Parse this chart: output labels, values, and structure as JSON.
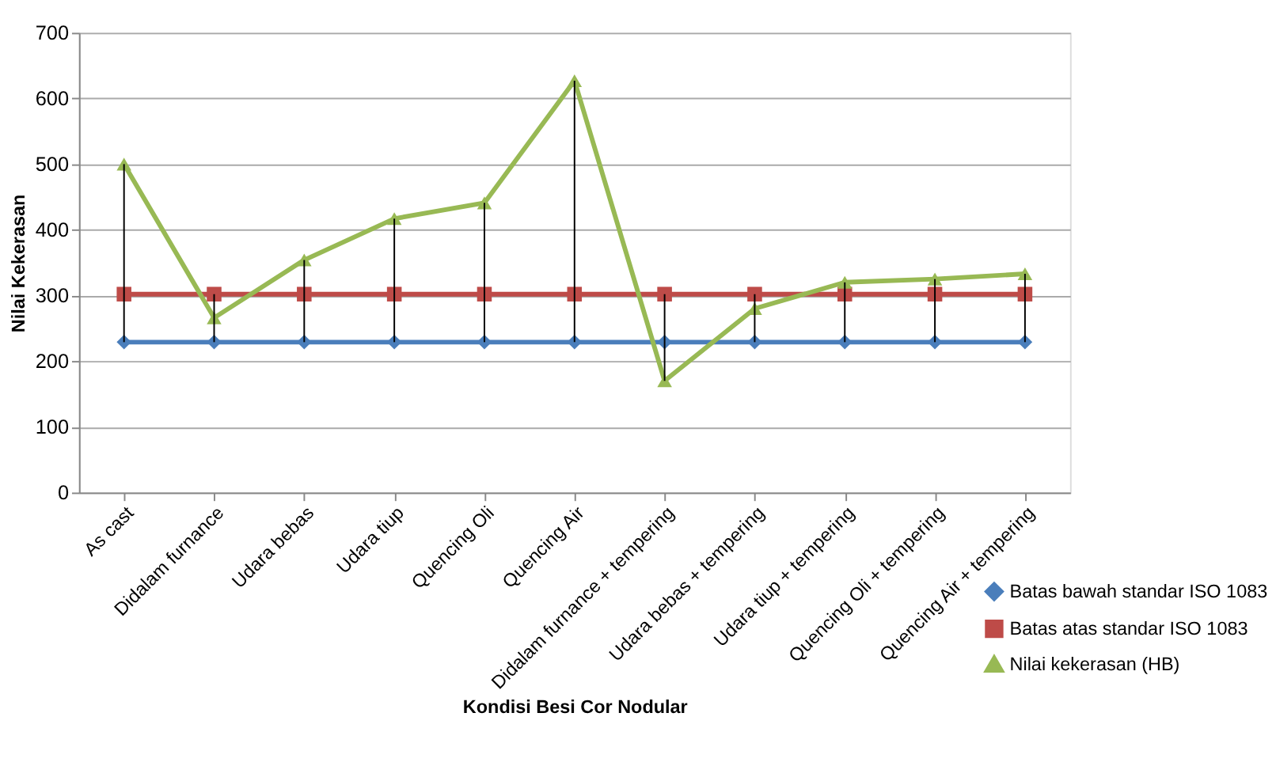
{
  "chart_data": {
    "type": "line",
    "xlabel": "Kondisi Besi Cor Nodular",
    "ylabel": "Nilai Kekerasan",
    "categories": [
      "As cast",
      "Didalam furnance",
      "Udara bebas",
      "Udara tiup",
      "Quencing Oli",
      "Quencing Air",
      "Didalam furnance + tempering",
      "Udara bebas + tempering",
      "Udara tiup + tempering",
      "Quencing Oli + tempering",
      "Quencing Air + tempering"
    ],
    "series": [
      {
        "name": "Batas bawah standar ISO 1083",
        "color": "#4a7ebb",
        "marker": "diamond",
        "values": [
          229,
          229,
          229,
          229,
          229,
          229,
          229,
          229,
          229,
          229,
          229
        ]
      },
      {
        "name": "Batas atas standar ISO 1083",
        "color": "#be4b48",
        "marker": "square",
        "values": [
          302,
          302,
          302,
          302,
          302,
          302,
          302,
          302,
          302,
          302,
          302
        ]
      },
      {
        "name": "Nilai kekerasan (HB)",
        "color": "#98b954",
        "marker": "triangle",
        "values": [
          500,
          266,
          354,
          417,
          441,
          627,
          170,
          280,
          320,
          325,
          333
        ],
        "errors": [
          [
            229,
            500
          ],
          [
            229,
            302
          ],
          [
            229,
            354
          ],
          [
            229,
            417
          ],
          [
            229,
            441
          ],
          [
            229,
            627
          ],
          [
            170,
            302
          ],
          [
            229,
            302
          ],
          [
            229,
            320
          ],
          [
            229,
            325
          ],
          [
            229,
            333
          ]
        ]
      }
    ],
    "ylim": [
      0,
      700
    ],
    "yticks": [
      0,
      100,
      200,
      300,
      400,
      500,
      600,
      700
    ],
    "grid": "y",
    "legend": "bottom right",
    "line_style": "solid"
  }
}
